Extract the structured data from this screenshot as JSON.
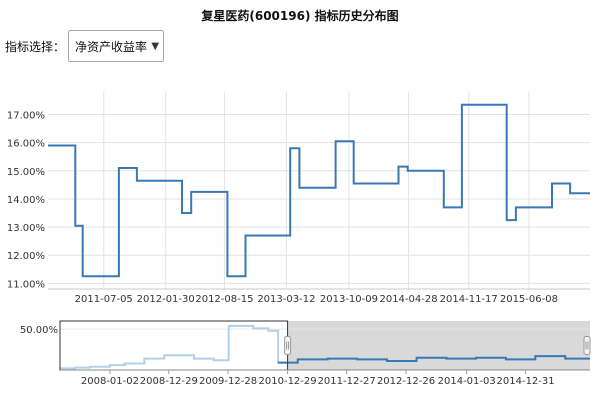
{
  "page_title": "复星医药(600196) 指标历史分布图",
  "selector": {
    "label": "指标选择：",
    "selected": "净资产收益率"
  },
  "chart_data": [
    {
      "type": "line",
      "step": "hv",
      "ylim": [
        10.8,
        17.8
      ],
      "y_ticks": [
        "17.00%",
        "16.00%",
        "15.00%",
        "14.00%",
        "13.00%",
        "12.00%",
        "11.00%"
      ],
      "y_tick_values": [
        17,
        16,
        15,
        14,
        13,
        12,
        11
      ],
      "x_ticks": [
        "2011-07-05",
        "2012-01-30",
        "2012-08-15",
        "2013-03-12",
        "2013-10-09",
        "2014-04-28",
        "2014-11-17",
        "2015-06-08"
      ],
      "x_range": [
        "2010-12-29",
        "2015-12-31"
      ],
      "grid": true,
      "series": [
        {
          "color": "#3a78b5",
          "points": [
            [
              "2010-12-29",
              15.9
            ],
            [
              "2011-03-31",
              13.05
            ],
            [
              "2011-04-25",
              11.25
            ],
            [
              "2011-08-25",
              15.1
            ],
            [
              "2011-10-25",
              14.65
            ],
            [
              "2012-03-25",
              13.5
            ],
            [
              "2012-04-25",
              14.25
            ],
            [
              "2012-08-25",
              11.25
            ],
            [
              "2012-10-25",
              12.7
            ],
            [
              "2013-03-25",
              15.8
            ],
            [
              "2013-04-25",
              14.4
            ],
            [
              "2013-08-25",
              16.05
            ],
            [
              "2013-10-25",
              14.55
            ],
            [
              "2014-03-25",
              15.15
            ],
            [
              "2014-04-25",
              15.0
            ],
            [
              "2014-08-25",
              13.7
            ],
            [
              "2014-10-25",
              17.35
            ],
            [
              "2015-03-25",
              13.25
            ],
            [
              "2015-04-25",
              13.7
            ],
            [
              "2015-08-25",
              14.55
            ],
            [
              "2015-10-25",
              14.2
            ],
            [
              "2015-12-31",
              14.2
            ]
          ]
        }
      ]
    },
    {
      "type": "line",
      "step": "hv",
      "ylim": [
        0,
        60
      ],
      "y_ticks": [
        "50.00%"
      ],
      "y_tick_values": [
        50
      ],
      "x_ticks": [
        "2008-01-02",
        "2008-12-29",
        "2009-12-28",
        "2010-12-29",
        "2011-12-27",
        "2012-12-26",
        "2014-01-03",
        "2014-12-31"
      ],
      "x_range": [
        "2007-03-01",
        "2016-01-31"
      ],
      "selected_range": [
        "2010-12-29",
        "2016-01-31"
      ],
      "grid": true,
      "series": [
        {
          "color": "#3a78b5",
          "points": [
            [
              "2007-03-01",
              2
            ],
            [
              "2007-06-01",
              3
            ],
            [
              "2007-09-01",
              4
            ],
            [
              "2008-01-01",
              6
            ],
            [
              "2008-04-01",
              8
            ],
            [
              "2008-08-01",
              14
            ],
            [
              "2008-12-01",
              18
            ],
            [
              "2009-06-01",
              14
            ],
            [
              "2009-10-01",
              12
            ],
            [
              "2010-01-01",
              54
            ],
            [
              "2010-06-01",
              51
            ],
            [
              "2010-09-01",
              48
            ],
            [
              "2010-11-01",
              9
            ],
            [
              "2011-03-01",
              13
            ],
            [
              "2011-09-01",
              14
            ],
            [
              "2012-03-01",
              13
            ],
            [
              "2012-09-01",
              11
            ],
            [
              "2013-03-01",
              15
            ],
            [
              "2013-09-01",
              14
            ],
            [
              "2014-03-01",
              15
            ],
            [
              "2014-09-01",
              13
            ],
            [
              "2015-03-01",
              17
            ],
            [
              "2015-09-01",
              14
            ],
            [
              "2016-01-31",
              14
            ]
          ]
        }
      ]
    }
  ]
}
